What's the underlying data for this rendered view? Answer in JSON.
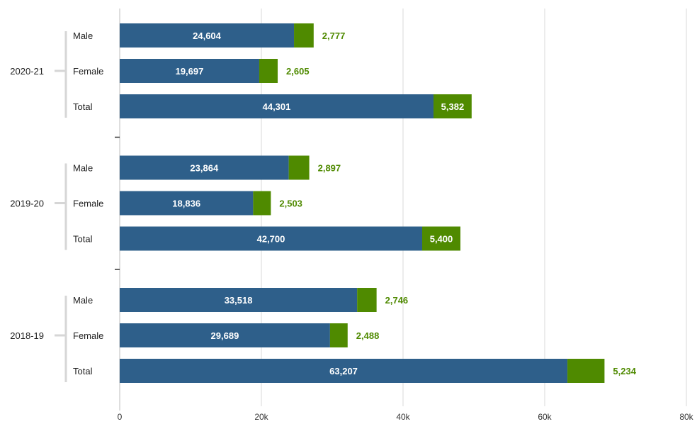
{
  "chart_data": {
    "type": "bar",
    "orientation": "horizontal",
    "stacked": true,
    "xlim": [
      0,
      80000
    ],
    "x_ticks": [
      0,
      20000,
      40000,
      60000,
      80000
    ],
    "x_tick_labels": [
      "0",
      "20k",
      "40k",
      "60k",
      "80k"
    ],
    "grid": true,
    "colors": {
      "primary": "#2e5f8a",
      "secondary": "#4f8a00"
    },
    "groups": [
      {
        "label": "2020-21",
        "categories": [
          {
            "label": "Male",
            "values": [
              24604,
              2777
            ],
            "value_labels": [
              "24,604",
              "2,777"
            ]
          },
          {
            "label": "Female",
            "values": [
              19697,
              2605
            ],
            "value_labels": [
              "19,697",
              "2,605"
            ]
          },
          {
            "label": "Total",
            "values": [
              44301,
              5382
            ],
            "value_labels": [
              "44,301",
              "5,382"
            ]
          }
        ]
      },
      {
        "label": "2019-20",
        "categories": [
          {
            "label": "Male",
            "values": [
              23864,
              2897
            ],
            "value_labels": [
              "23,864",
              "2,897"
            ]
          },
          {
            "label": "Female",
            "values": [
              18836,
              2503
            ],
            "value_labels": [
              "18,836",
              "2,503"
            ]
          },
          {
            "label": "Total",
            "values": [
              42700,
              5400
            ],
            "value_labels": [
              "42,700",
              "5,400"
            ]
          }
        ]
      },
      {
        "label": "2018-19",
        "categories": [
          {
            "label": "Male",
            "values": [
              33518,
              2746
            ],
            "value_labels": [
              "33,518",
              "2,746"
            ]
          },
          {
            "label": "Female",
            "values": [
              29689,
              2488
            ],
            "value_labels": [
              "29,689",
              "2,488"
            ]
          },
          {
            "label": "Total",
            "values": [
              63207,
              5234
            ],
            "value_labels": [
              "63,207",
              "5,234"
            ]
          }
        ]
      }
    ]
  }
}
